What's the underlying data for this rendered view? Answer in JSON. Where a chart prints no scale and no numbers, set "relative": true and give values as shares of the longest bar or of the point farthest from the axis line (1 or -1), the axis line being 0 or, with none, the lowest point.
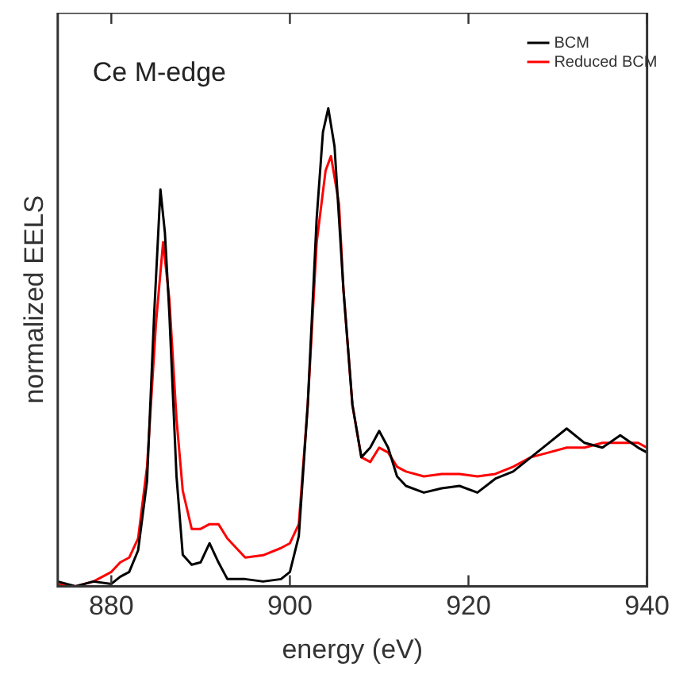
{
  "chart_data": {
    "type": "line",
    "xlabel": "energy (eV)",
    "ylabel": "normalized EELS",
    "annotations": [
      "Ce M-edge"
    ],
    "relative": true,
    "xlim": [
      874,
      940
    ],
    "xticks": [
      880,
      900,
      920,
      940
    ],
    "grid": false,
    "legend": "top right",
    "marker": "none",
    "line_style": "solid",
    "series": [
      {
        "name": "BCM",
        "color": "#000000",
        "x": [
          874,
          876,
          878,
          880,
          881,
          882,
          883,
          884,
          884.8,
          885.5,
          886,
          886.5,
          887.3,
          888,
          889,
          890,
          891,
          892,
          893,
          895,
          897,
          899,
          900,
          901,
          902,
          903,
          903.7,
          904.3,
          905,
          906,
          907,
          908,
          909,
          910,
          911,
          912,
          913,
          915,
          917,
          919,
          921,
          923,
          925,
          927,
          929,
          931,
          933,
          935,
          937,
          939,
          940
        ],
        "values": [
          0.01,
          0,
          0.01,
          0.005,
          0.02,
          0.03,
          0.075,
          0.22,
          0.57,
          0.83,
          0.74,
          0.57,
          0.23,
          0.066,
          0.045,
          0.05,
          0.09,
          0.05,
          0.015,
          0.015,
          0.01,
          0.015,
          0.03,
          0.105,
          0.38,
          0.77,
          0.95,
          1.0,
          0.92,
          0.62,
          0.38,
          0.27,
          0.29,
          0.325,
          0.29,
          0.23,
          0.21,
          0.196,
          0.205,
          0.21,
          0.196,
          0.225,
          0.24,
          0.27,
          0.3,
          0.33,
          0.3,
          0.29,
          0.316,
          0.29,
          0.28
        ]
      },
      {
        "name": "Reduced BCM",
        "color": "#ff0000",
        "x": [
          874,
          876,
          878,
          880,
          881,
          882,
          883,
          884,
          885,
          885.8,
          886.5,
          887.3,
          888,
          889,
          890,
          891,
          892,
          893,
          894,
          895,
          897,
          899,
          900,
          901,
          902,
          903,
          904,
          904.6,
          905.5,
          906,
          907,
          908,
          909,
          910,
          911,
          912,
          913,
          915,
          917,
          919,
          921,
          923,
          925,
          927,
          929,
          931,
          933,
          935,
          937,
          939,
          940
        ],
        "values": [
          0.005,
          0,
          0.01,
          0.03,
          0.05,
          0.06,
          0.1,
          0.25,
          0.55,
          0.72,
          0.6,
          0.35,
          0.2,
          0.12,
          0.12,
          0.13,
          0.13,
          0.1,
          0.08,
          0.06,
          0.065,
          0.08,
          0.09,
          0.13,
          0.38,
          0.72,
          0.87,
          0.9,
          0.8,
          0.62,
          0.38,
          0.27,
          0.26,
          0.29,
          0.28,
          0.25,
          0.24,
          0.23,
          0.235,
          0.235,
          0.23,
          0.235,
          0.25,
          0.27,
          0.28,
          0.29,
          0.29,
          0.3,
          0.3,
          0.3,
          0.29
        ]
      }
    ]
  }
}
